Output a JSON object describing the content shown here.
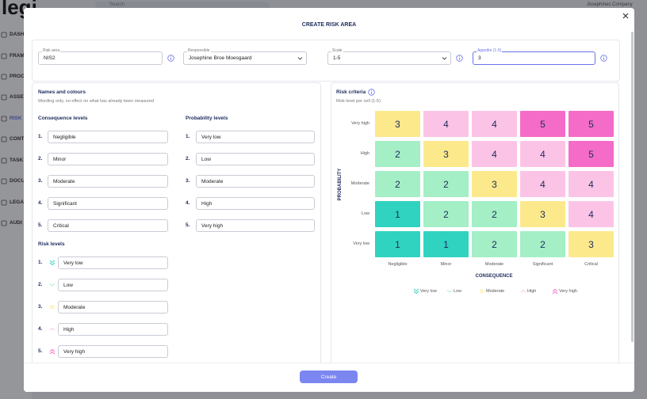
{
  "background": {
    "logo": "legi",
    "search": "Search",
    "company": "Josephines Company",
    "nav": [
      "DASH",
      "FRAM",
      "PROC",
      "ASSET",
      "RISK",
      "CONT",
      "TASK",
      "DOCU",
      "LEGA",
      "AUDI"
    ]
  },
  "modal": {
    "title": "CREATE RISK AREA",
    "fields": [
      {
        "label": "Risk area",
        "value": "NIS2"
      },
      {
        "label": "Responsible",
        "value": "Josephine Broe Moesgaard"
      },
      {
        "label": "Scale",
        "value": "1-5"
      },
      {
        "label": "Appetite (1-5)",
        "value": "3"
      }
    ],
    "names": {
      "title": "Names and colours",
      "subtitle": "Wording only, no effect on what has already been measured",
      "numbers": [
        "1.",
        "2.",
        "3.",
        "4.",
        "5."
      ],
      "consequence": {
        "title": "Consequence levels",
        "items": [
          "Negligible",
          "Minor",
          "Moderate",
          "Significant",
          "Critical"
        ]
      },
      "probability": {
        "title": "Probability levels",
        "items": [
          "Very low",
          "Low",
          "Moderate",
          "High",
          "Very high"
        ]
      },
      "risk_levels": {
        "title": "Risk levels",
        "items": [
          "Very low",
          "Low",
          "Moderate",
          "High",
          "Very high"
        ],
        "colors": [
          "#2fd3bf",
          "#a4efc6",
          "#fbe98c",
          "#fbc4e7",
          "#f46cc7"
        ]
      }
    },
    "criteria": {
      "title": "Risk criteria",
      "subtitle": "Risk level per cell (1-5)",
      "y_label": "PROBABILITY",
      "x_label": "CONSEQUENCE",
      "rows": [
        "Very high",
        "High",
        "Moderate",
        "Low",
        "Very low"
      ],
      "columns": [
        "Negligible",
        "Minor",
        "Moderate",
        "Significant",
        "Critical"
      ],
      "cells": [
        [
          3,
          4,
          4,
          5,
          5
        ],
        [
          2,
          3,
          4,
          4,
          5
        ],
        [
          2,
          2,
          3,
          4,
          4
        ],
        [
          1,
          2,
          2,
          3,
          4
        ],
        [
          1,
          1,
          2,
          2,
          3
        ]
      ]
    },
    "button": "Create"
  }
}
